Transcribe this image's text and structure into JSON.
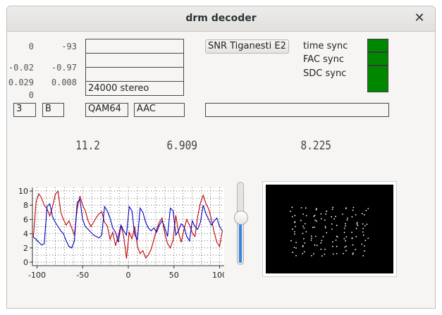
{
  "window": {
    "title": "drm decoder"
  },
  "readouts": {
    "left_col": [
      "0",
      "-0.02",
      "0.029",
      "0"
    ],
    "right_col": [
      "-93",
      "-0.97",
      "0.008"
    ],
    "big": [
      "11.2",
      "6.909",
      "8.225"
    ]
  },
  "info_boxes": [
    "",
    "",
    "",
    "24000 stereo"
  ],
  "station_button": "SNR Tiganesti E2",
  "sync": [
    {
      "label": "time sync",
      "color": "#008700"
    },
    {
      "label": "FAC sync",
      "color": "#008700"
    },
    {
      "label": "SDC sync",
      "color": "#008700"
    }
  ],
  "mode_fields": {
    "robustness": "3",
    "spectrum": "B",
    "modulation": "QAM64",
    "codec": "AAC",
    "message": ""
  },
  "slider": {
    "level": 0.57
  },
  "chart_data": {
    "type": "line",
    "xlim": [
      -105,
      105
    ],
    "ylim": [
      -0.5,
      10.5
    ],
    "xticks": [
      -100,
      -50,
      0,
      50,
      100
    ],
    "yticks": [
      0,
      2,
      4,
      6,
      8,
      10
    ],
    "grid": true,
    "series": [
      {
        "color": "#c00000",
        "x": [
          -104,
          -101,
          -98,
          -95,
          -92,
          -89,
          -86,
          -83,
          -80,
          -77,
          -74,
          -71,
          -68,
          -65,
          -62,
          -59,
          -56,
          -53,
          -50,
          -47,
          -44,
          -41,
          -38,
          -35,
          -32,
          -29,
          -26,
          -23,
          -20,
          -17,
          -14,
          -11,
          -8,
          -5,
          -2,
          1,
          4,
          7,
          10,
          13,
          16,
          19,
          22,
          25,
          28,
          31,
          34,
          37,
          40,
          43,
          46,
          49,
          52,
          55,
          58,
          61,
          64,
          67,
          70,
          73,
          76,
          79,
          82,
          85,
          88,
          91,
          94,
          97,
          100,
          103
        ],
        "y": [
          3.5,
          8.5,
          9.6,
          9.0,
          8.0,
          7.5,
          6.5,
          7.8,
          9.5,
          10.0,
          7.0,
          6.0,
          5.2,
          5.8,
          4.8,
          3.8,
          7.5,
          9.3,
          8.0,
          7.2,
          5.8,
          5.0,
          5.6,
          6.3,
          6.8,
          7.1,
          5.6,
          5.1,
          3.2,
          4.2,
          2.3,
          3.7,
          5.2,
          3.6,
          0.5,
          4.2,
          3.3,
          5.0,
          2.2,
          1.2,
          1.6,
          0.6,
          1.0,
          1.8,
          3.2,
          4.6,
          5.6,
          6.2,
          4.0,
          2.6,
          2.0,
          3.1,
          6.6,
          4.2,
          2.8,
          4.6,
          6.0,
          5.2,
          4.1,
          3.6,
          6.4,
          8.3,
          9.4,
          8.2,
          7.5,
          6.0,
          4.2,
          2.8,
          2.2,
          4.4
        ]
      },
      {
        "color": "#0000c0",
        "x": [
          -104,
          -101,
          -98,
          -95,
          -92,
          -89,
          -86,
          -83,
          -80,
          -77,
          -74,
          -71,
          -68,
          -65,
          -62,
          -59,
          -56,
          -53,
          -50,
          -47,
          -44,
          -41,
          -38,
          -35,
          -32,
          -29,
          -26,
          -23,
          -20,
          -17,
          -14,
          -11,
          -8,
          -5,
          -2,
          1,
          4,
          7,
          10,
          13,
          16,
          19,
          22,
          25,
          28,
          31,
          34,
          37,
          40,
          43,
          46,
          49,
          52,
          55,
          58,
          61,
          64,
          67,
          70,
          73,
          76,
          79,
          82,
          85,
          88,
          91,
          94,
          97,
          100,
          103
        ],
        "y": [
          3.5,
          3.2,
          2.8,
          2.4,
          2.6,
          7.8,
          8.2,
          6.4,
          5.6,
          5.0,
          4.4,
          4.0,
          3.0,
          2.2,
          2.0,
          3.0,
          8.4,
          8.8,
          6.0,
          5.0,
          4.6,
          4.2,
          3.8,
          3.6,
          3.4,
          3.8,
          7.8,
          7.2,
          6.2,
          4.8,
          4.2,
          2.8,
          5.2,
          4.4,
          3.8,
          7.8,
          7.2,
          3.8,
          3.2,
          7.6,
          7.0,
          5.6,
          4.8,
          4.4,
          4.8,
          4.2,
          5.2,
          5.8,
          4.8,
          3.6,
          7.6,
          7.2,
          3.8,
          4.4,
          5.4,
          5.0,
          3.6,
          3.0,
          5.8,
          5.0,
          4.6,
          5.6,
          8.0,
          6.8,
          6.0,
          5.2,
          5.8,
          6.2,
          5.0,
          4.4
        ]
      }
    ]
  },
  "constellation": {
    "xs": [
      -3.5,
      -2.5,
      -1.5,
      -0.5,
      0.5,
      1.5,
      2.5,
      3.5
    ],
    "ys": [
      -3.5,
      -2.5,
      -1.5,
      -0.5,
      0.5,
      1.5,
      2.5,
      3.5
    ]
  }
}
